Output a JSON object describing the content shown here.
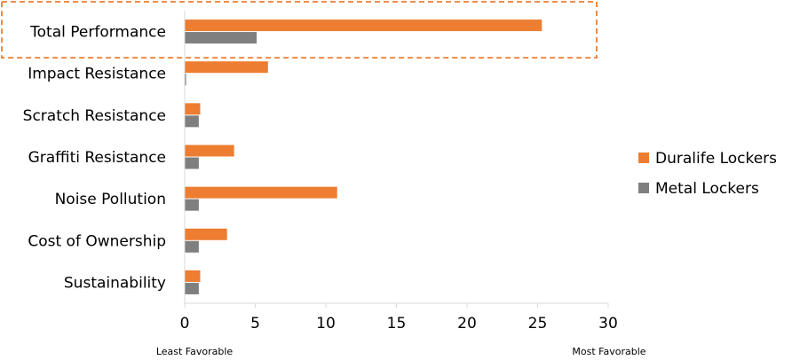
{
  "chart_data": {
    "type": "bar",
    "orientation": "horizontal",
    "categories": [
      "Total Performance",
      "Impact Resistance",
      "Scratch Resistance",
      "Graffiti Resistance",
      "Noise Pollution",
      "Cost of Ownership",
      "Sustainability"
    ],
    "series": [
      {
        "name": "Duralife Lockers",
        "color": "#ED7D31",
        "values": [
          25.3,
          5.9,
          1.1,
          3.5,
          10.8,
          3.0,
          1.1
        ]
      },
      {
        "name": "Metal Lockers",
        "color": "#7F7F7F",
        "values": [
          5.1,
          0.1,
          1.0,
          1.0,
          1.0,
          1.0,
          1.0
        ]
      }
    ],
    "xlim": [
      0,
      30
    ],
    "xticks": [
      "0",
      "5",
      "10",
      "15",
      "20",
      "25",
      "30"
    ],
    "legend": "right",
    "grid": false,
    "axis_notes": {
      "left": "Least Favorable",
      "right": "Most Favorable"
    },
    "highlight": {
      "category": "Total Performance",
      "style": "dashed box",
      "color": "#ED7D31"
    }
  }
}
